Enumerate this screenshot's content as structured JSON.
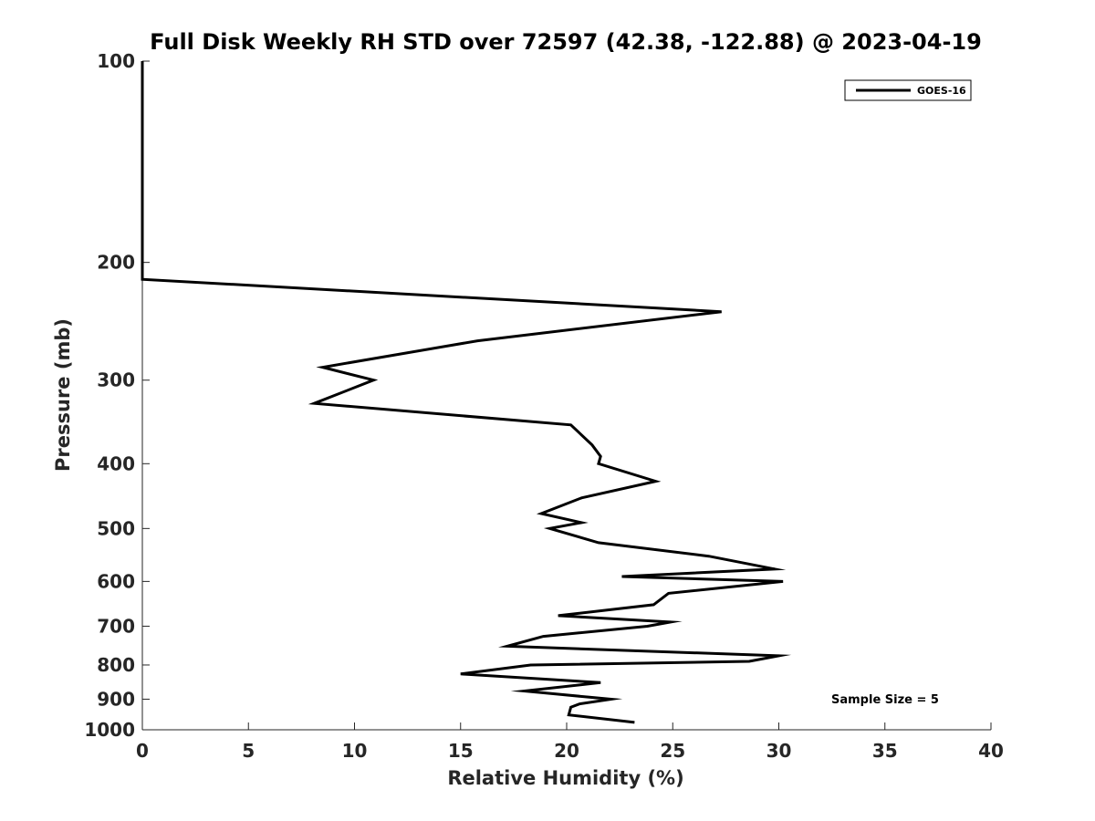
{
  "chart_data": {
    "type": "line",
    "title": "Full Disk Weekly RH STD over 72597 (42.38, -122.88) @ 2023-04-19",
    "xlabel": "Relative Humidity (%)",
    "ylabel": "Pressure (mb)",
    "xlim": [
      0,
      40
    ],
    "ylim": [
      100,
      1000
    ],
    "y_scale": "log",
    "y_reversed": true,
    "x_ticks": [
      0,
      5,
      10,
      15,
      20,
      25,
      30,
      35,
      40
    ],
    "y_ticks": [
      100,
      200,
      300,
      400,
      500,
      600,
      700,
      800,
      900,
      1000
    ],
    "grid": false,
    "legend_position": "top-right",
    "series": [
      {
        "name": "GOES-16",
        "color": "#000000",
        "x": [
          0,
          0,
          0,
          0,
          0,
          0,
          27.3,
          15.8,
          8.5,
          10.9,
          8.1,
          20.2,
          21.2,
          21.6,
          21.5,
          24.2,
          20.7,
          18.8,
          20.7,
          19.2,
          21.5,
          26.7,
          29.8,
          22.6,
          30.2,
          24.8,
          24.1,
          19.6,
          24.9,
          23.8,
          18.9,
          17.2,
          30.0,
          28.6,
          18.3,
          15.0,
          21.6,
          18.0,
          22.1,
          20.6,
          20.2,
          20.1,
          23.2
        ],
        "y": [
          100,
          125,
          150,
          175,
          200,
          212,
          237,
          262,
          287,
          300,
          325,
          350,
          375,
          390,
          400,
          425,
          450,
          475,
          490,
          500,
          525,
          550,
          575,
          590,
          600,
          625,
          650,
          675,
          690,
          700,
          725,
          750,
          775,
          790,
          800,
          825,
          850,
          875,
          900,
          915,
          925,
          950,
          975
        ]
      }
    ],
    "annotations": [
      "Sample Size = 5"
    ]
  }
}
